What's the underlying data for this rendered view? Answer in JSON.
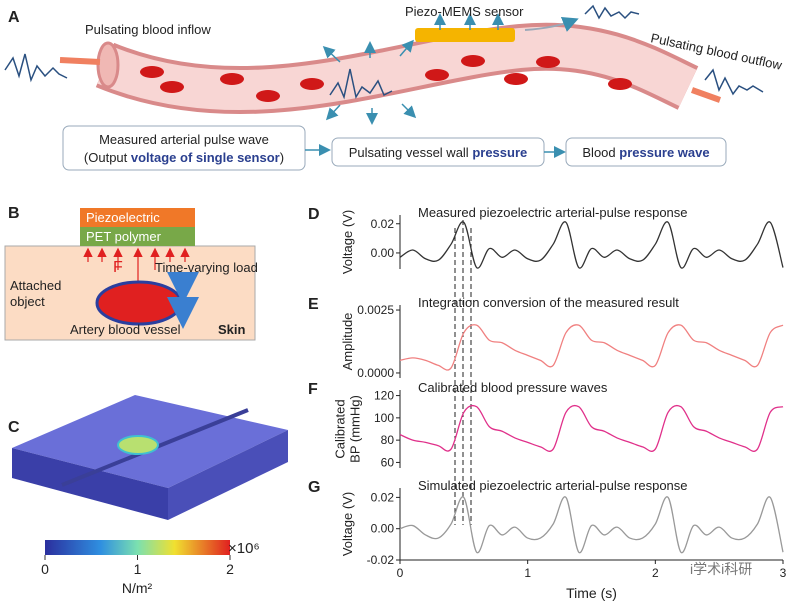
{
  "panel_a": {
    "label": "A",
    "inflow": "Pulsating blood inflow",
    "outflow": "Pulsating blood outflow",
    "sensor": "Piezo-MEMS sensor"
  },
  "flow": [
    {
      "line1": "Measured arterial pulse wave",
      "parts": [
        "(Output ",
        "voltage of single sensor",
        ")"
      ]
    },
    {
      "parts": [
        "Pulsating vessel wall ",
        "pressure"
      ]
    },
    {
      "parts": [
        "Blood ",
        "pressure wave"
      ]
    }
  ],
  "panel_b": {
    "label": "B",
    "layer1": "Piezoelectric",
    "layer2": "PET polymer",
    "force": "F",
    "load": "Time-varying load",
    "object": [
      "Attached",
      "object"
    ],
    "vessel": "Artery blood vessel",
    "skin": "Skin"
  },
  "panel_c": {
    "label": "C",
    "colorbar_ticks": [
      0,
      1,
      2
    ],
    "colorbar_lim": [
      0,
      2
    ],
    "exponent": "×10⁶",
    "unit": "N/m²"
  },
  "watermark": "i学术i科研",
  "chart_data": [
    {
      "type": "line",
      "panel": "D",
      "title": "Measured piezoelectric arterial-pulse response",
      "ylabel": [
        "Voltage (V)"
      ],
      "color": "#333333",
      "x": [
        0,
        0.1,
        0.2,
        0.3,
        0.4,
        0.5,
        0.6,
        0.7,
        0.8,
        0.9,
        1,
        1.1,
        1.2,
        1.3,
        1.4,
        1.5,
        1.6,
        1.7,
        1.8,
        1.9,
        2,
        2.1,
        2.2,
        2.3,
        2.4,
        2.5,
        2.6,
        2.7,
        2.8,
        2.9,
        3
      ],
      "values": [
        -0.003,
        0.002,
        -0.004,
        -0.005,
        0.006,
        0.021,
        -0.01,
        0.003,
        -0.003,
        0.002,
        -0.004,
        -0.005,
        0.006,
        0.021,
        -0.01,
        0.003,
        -0.003,
        0.002,
        -0.004,
        -0.005,
        0.006,
        0.021,
        -0.01,
        0.003,
        -0.003,
        0.002,
        -0.004,
        -0.005,
        0.006,
        0.021,
        -0.01
      ],
      "xlim": [
        0,
        3
      ],
      "ylim": [
        -0.011,
        0.026
      ],
      "yticks": [
        0.02,
        {
          "value": 0,
          "label": "0.00"
        }
      ]
    },
    {
      "type": "line",
      "panel": "E",
      "title": "Integration conversion of the measured result",
      "ylabel": [
        "Amplitude"
      ],
      "color": "#f08080",
      "x": [
        0,
        0.1,
        0.2,
        0.3,
        0.4,
        0.5,
        0.6,
        0.7,
        0.8,
        0.9,
        1,
        1.1,
        1.2,
        1.3,
        1.4,
        1.5,
        1.6,
        1.7,
        1.8,
        1.9,
        2,
        2.1,
        2.2,
        2.3,
        2.4,
        2.5,
        2.6,
        2.7,
        2.8,
        2.9,
        3
      ],
      "values": [
        0.0005,
        0.0006,
        0.0005,
        0.0003,
        0.0002,
        0.0016,
        0.0019,
        0.0013,
        0.0012,
        0.0009,
        0.0007,
        0.0005,
        0.0003,
        0.0016,
        0.0019,
        0.0013,
        0.0012,
        0.0009,
        0.0007,
        0.0005,
        0.0003,
        0.0016,
        0.0019,
        0.0013,
        0.0012,
        0.0009,
        0.0007,
        0.0005,
        0.0003,
        0.0016,
        0.0019
      ],
      "xlim": [
        0,
        3
      ],
      "ylim": [
        -0.0002,
        0.0027
      ],
      "yticks": [
        0.0025,
        {
          "value": 0,
          "label": "0.0000"
        }
      ]
    },
    {
      "type": "line",
      "panel": "F",
      "title": "Calibrated blood pressure waves",
      "ylabel": [
        "Calibrated",
        "BP (mmHg)"
      ],
      "color": "#e0308a",
      "x": [
        0,
        0.1,
        0.2,
        0.3,
        0.4,
        0.5,
        0.6,
        0.7,
        0.8,
        0.9,
        1,
        1.1,
        1.2,
        1.3,
        1.4,
        1.5,
        1.6,
        1.7,
        1.8,
        1.9,
        2,
        2.1,
        2.2,
        2.3,
        2.4,
        2.5,
        2.6,
        2.7,
        2.8,
        2.9,
        3
      ],
      "values": [
        85,
        80,
        78,
        75,
        72,
        105,
        110,
        92,
        88,
        82,
        78,
        74,
        72,
        105,
        110,
        92,
        88,
        82,
        78,
        74,
        72,
        105,
        110,
        92,
        88,
        82,
        78,
        74,
        72,
        105,
        110
      ],
      "xlim": [
        0,
        3
      ],
      "ylim": [
        55,
        125
      ],
      "yticks": [
        60,
        80,
        100,
        120
      ]
    },
    {
      "type": "line",
      "panel": "G",
      "title": "Simulated piezoelectric arterial-pulse response",
      "ylabel": [
        "Voltage (V)"
      ],
      "color": "#999999",
      "x": [
        0,
        0.1,
        0.2,
        0.3,
        0.4,
        0.5,
        0.6,
        0.7,
        0.8,
        0.9,
        1,
        1.1,
        1.2,
        1.3,
        1.4,
        1.5,
        1.6,
        1.7,
        1.8,
        1.9,
        2,
        2.1,
        2.2,
        2.3,
        2.4,
        2.5,
        2.6,
        2.7,
        2.8,
        2.9,
        3
      ],
      "values": [
        0,
        0.002,
        -0.004,
        -0.006,
        0.003,
        0.02,
        -0.015,
        0.002,
        -0.004,
        0.001,
        -0.006,
        -0.006,
        0.003,
        0.02,
        -0.015,
        0.002,
        -0.004,
        0.001,
        -0.006,
        -0.006,
        0.003,
        0.02,
        -0.015,
        0.002,
        -0.004,
        0.001,
        -0.006,
        -0.006,
        0.003,
        0.02,
        -0.015
      ],
      "xlim": [
        0,
        3
      ],
      "ylim": [
        -0.02,
        0.026
      ],
      "yticks": [
        0.02,
        {
          "value": 0,
          "label": "0.00"
        },
        -0.02
      ],
      "xticks": [
        0,
        1,
        2,
        3
      ],
      "xlabel": "Time (s)"
    }
  ]
}
